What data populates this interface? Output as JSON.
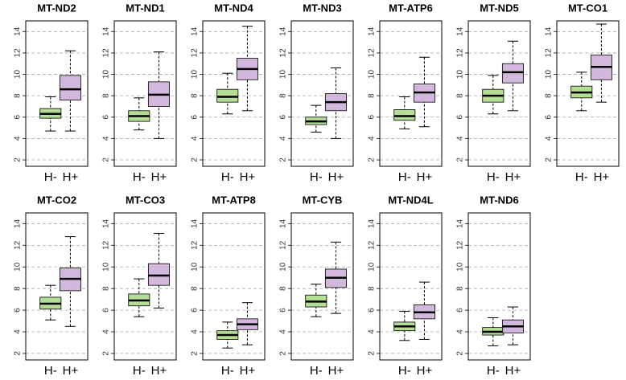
{
  "chart_data": [
    {
      "type": "box",
      "title": "MT-ND2",
      "categories": [
        "H-",
        "H+"
      ],
      "boxes": [
        {
          "whislo": 4.7,
          "q1": 5.9,
          "med": 6.3,
          "q3": 6.8,
          "whishi": 7.9,
          "color": "#acd98a"
        },
        {
          "whislo": 4.7,
          "q1": 7.6,
          "med": 8.6,
          "q3": 9.9,
          "whishi": 12.2,
          "color": "#cdb0d9"
        }
      ],
      "ylim": [
        1.4,
        15
      ],
      "yticks": [
        2,
        4,
        6,
        8,
        10,
        12,
        14
      ],
      "grid": true
    },
    {
      "type": "box",
      "title": "MT-ND1",
      "categories": [
        "H-",
        "H+"
      ],
      "boxes": [
        {
          "whislo": 4.8,
          "q1": 5.6,
          "med": 6.1,
          "q3": 6.6,
          "whishi": 7.8,
          "color": "#acd98a"
        },
        {
          "whislo": 4.0,
          "q1": 7.0,
          "med": 8.1,
          "q3": 9.3,
          "whishi": 12.1,
          "color": "#cdb0d9"
        }
      ],
      "ylim": [
        1.4,
        15
      ],
      "yticks": [
        2,
        4,
        6,
        8,
        10,
        12,
        14
      ],
      "grid": true
    },
    {
      "type": "box",
      "title": "MT-ND4",
      "categories": [
        "H-",
        "H+"
      ],
      "boxes": [
        {
          "whislo": 6.3,
          "q1": 7.4,
          "med": 7.9,
          "q3": 8.6,
          "whishi": 10.1,
          "color": "#acd98a"
        },
        {
          "whislo": 6.6,
          "q1": 9.5,
          "med": 10.5,
          "q3": 11.5,
          "whishi": 14.5,
          "color": "#cdb0d9"
        }
      ],
      "ylim": [
        1.4,
        15
      ],
      "yticks": [
        2,
        4,
        6,
        8,
        10,
        12,
        14
      ],
      "grid": true
    },
    {
      "type": "box",
      "title": "MT-ND3",
      "categories": [
        "H-",
        "H+"
      ],
      "boxes": [
        {
          "whislo": 4.6,
          "q1": 5.3,
          "med": 5.6,
          "q3": 6.0,
          "whishi": 7.1,
          "color": "#acd98a"
        },
        {
          "whislo": 4.0,
          "q1": 6.6,
          "med": 7.4,
          "q3": 8.2,
          "whishi": 10.6,
          "color": "#cdb0d9"
        }
      ],
      "ylim": [
        1.4,
        15
      ],
      "yticks": [
        2,
        4,
        6,
        8,
        10,
        12,
        14
      ],
      "grid": true
    },
    {
      "type": "box",
      "title": "MT-ATP6",
      "categories": [
        "H-",
        "H+"
      ],
      "boxes": [
        {
          "whislo": 4.9,
          "q1": 5.7,
          "med": 6.1,
          "q3": 6.7,
          "whishi": 7.9,
          "color": "#acd98a"
        },
        {
          "whislo": 5.1,
          "q1": 7.4,
          "med": 8.3,
          "q3": 9.1,
          "whishi": 11.6,
          "color": "#cdb0d9"
        }
      ],
      "ylim": [
        1.4,
        15
      ],
      "yticks": [
        2,
        4,
        6,
        8,
        10,
        12,
        14
      ],
      "grid": true
    },
    {
      "type": "box",
      "title": "MT-ND5",
      "categories": [
        "H-",
        "H+"
      ],
      "boxes": [
        {
          "whislo": 6.3,
          "q1": 7.4,
          "med": 8.0,
          "q3": 8.6,
          "whishi": 9.9,
          "color": "#acd98a"
        },
        {
          "whislo": 6.6,
          "q1": 9.2,
          "med": 10.2,
          "q3": 11.0,
          "whishi": 13.1,
          "color": "#cdb0d9"
        }
      ],
      "ylim": [
        1.4,
        15
      ],
      "yticks": [
        2,
        4,
        6,
        8,
        10,
        12,
        14
      ],
      "grid": true
    },
    {
      "type": "box",
      "title": "MT-CO1",
      "categories": [
        "H-",
        "H+"
      ],
      "boxes": [
        {
          "whislo": 6.6,
          "q1": 7.8,
          "med": 8.3,
          "q3": 8.9,
          "whishi": 10.2,
          "color": "#acd98a"
        },
        {
          "whislo": 7.4,
          "q1": 9.5,
          "med": 10.7,
          "q3": 11.8,
          "whishi": 14.7,
          "color": "#cdb0d9"
        }
      ],
      "ylim": [
        1.4,
        15
      ],
      "yticks": [
        2,
        4,
        6,
        8,
        10,
        12,
        14
      ],
      "grid": true
    },
    {
      "type": "box",
      "title": "MT-CO2",
      "categories": [
        "H-",
        "H+"
      ],
      "boxes": [
        {
          "whislo": 5.1,
          "q1": 6.1,
          "med": 6.6,
          "q3": 7.2,
          "whishi": 8.3,
          "color": "#acd98a"
        },
        {
          "whislo": 4.5,
          "q1": 7.8,
          "med": 8.9,
          "q3": 9.9,
          "whishi": 12.8,
          "color": "#cdb0d9"
        }
      ],
      "ylim": [
        1.4,
        15
      ],
      "yticks": [
        2,
        4,
        6,
        8,
        10,
        12,
        14
      ],
      "grid": true
    },
    {
      "type": "box",
      "title": "MT-CO3",
      "categories": [
        "H-",
        "H+"
      ],
      "boxes": [
        {
          "whislo": 5.4,
          "q1": 6.4,
          "med": 6.9,
          "q3": 7.5,
          "whishi": 8.9,
          "color": "#acd98a"
        },
        {
          "whislo": 6.2,
          "q1": 8.3,
          "med": 9.2,
          "q3": 10.3,
          "whishi": 13.1,
          "color": "#cdb0d9"
        }
      ],
      "ylim": [
        1.4,
        15
      ],
      "yticks": [
        2,
        4,
        6,
        8,
        10,
        12,
        14
      ],
      "grid": true
    },
    {
      "type": "box",
      "title": "MT-ATP8",
      "categories": [
        "H-",
        "H+"
      ],
      "boxes": [
        {
          "whislo": 2.5,
          "q1": 3.3,
          "med": 3.7,
          "q3": 4.1,
          "whishi": 4.9,
          "color": "#acd98a"
        },
        {
          "whislo": 2.8,
          "q1": 4.2,
          "med": 4.7,
          "q3": 5.2,
          "whishi": 6.7,
          "color": "#cdb0d9"
        }
      ],
      "ylim": [
        1.4,
        15
      ],
      "yticks": [
        2,
        4,
        6,
        8,
        10,
        12,
        14
      ],
      "grid": true
    },
    {
      "type": "box",
      "title": "MT-CYB",
      "categories": [
        "H-",
        "H+"
      ],
      "boxes": [
        {
          "whislo": 5.4,
          "q1": 6.3,
          "med": 6.8,
          "q3": 7.4,
          "whishi": 8.4,
          "color": "#acd98a"
        },
        {
          "whislo": 5.7,
          "q1": 8.1,
          "med": 9.0,
          "q3": 9.8,
          "whishi": 12.3,
          "color": "#cdb0d9"
        }
      ],
      "ylim": [
        1.4,
        15
      ],
      "yticks": [
        2,
        4,
        6,
        8,
        10,
        12,
        14
      ],
      "grid": true
    },
    {
      "type": "box",
      "title": "MT-ND4L",
      "categories": [
        "H-",
        "H+"
      ],
      "boxes": [
        {
          "whislo": 3.2,
          "q1": 4.1,
          "med": 4.5,
          "q3": 4.9,
          "whishi": 5.9,
          "color": "#acd98a"
        },
        {
          "whislo": 3.3,
          "q1": 5.2,
          "med": 5.8,
          "q3": 6.5,
          "whishi": 8.6,
          "color": "#cdb0d9"
        }
      ],
      "ylim": [
        1.4,
        15
      ],
      "yticks": [
        2,
        4,
        6,
        8,
        10,
        12,
        14
      ],
      "grid": true
    },
    {
      "type": "box",
      "title": "MT-ND6",
      "categories": [
        "H-",
        "H+"
      ],
      "boxes": [
        {
          "whislo": 2.7,
          "q1": 3.7,
          "med": 4.0,
          "q3": 4.4,
          "whishi": 5.3,
          "color": "#acd98a"
        },
        {
          "whislo": 2.8,
          "q1": 3.9,
          "med": 4.5,
          "q3": 5.1,
          "whishi": 6.3,
          "color": "#cdb0d9"
        }
      ],
      "ylim": [
        1.4,
        15
      ],
      "yticks": [
        2,
        4,
        6,
        8,
        10,
        12,
        14
      ],
      "grid": true
    }
  ]
}
